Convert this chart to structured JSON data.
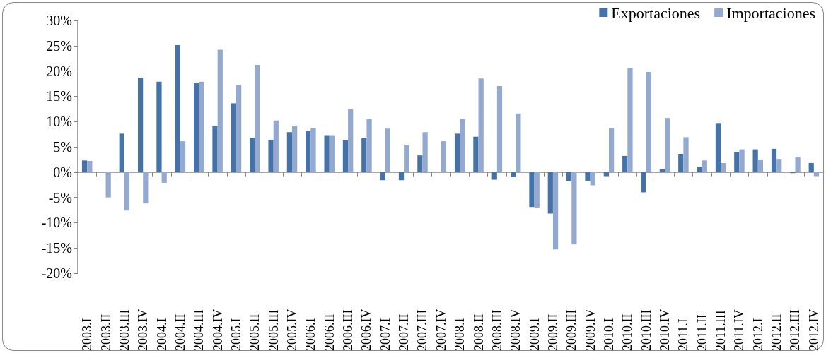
{
  "chart_data": {
    "type": "bar",
    "categories": [
      "2003.I",
      "2003.II",
      "2003.III",
      "2003.IV",
      "2004.I",
      "2004.II",
      "2004.III",
      "2004.IV",
      "2005.I",
      "2005.II",
      "2005.III",
      "2005.IV",
      "2006.I",
      "2006.II",
      "2006.III",
      "2006.IV",
      "2007.I",
      "2007.II",
      "2007.III",
      "2007.IV",
      "2008.I",
      "2008.II",
      "2008.III",
      "2008.IV",
      "2009.I",
      "2009.II",
      "2009.III",
      "2009.IV",
      "2010.I",
      "2010.II",
      "2010.III",
      "2010.IV",
      "2011.I",
      "2011.II",
      "2011.III",
      "2011.IV",
      "2012.I",
      "2012.II",
      "2012.III",
      "2012.IV"
    ],
    "series": [
      {
        "name": "Exportaciones",
        "color": "#4572a7",
        "values": [
          2.3,
          0,
          7.6,
          18.7,
          17.9,
          25.1,
          17.7,
          9.1,
          13.6,
          6.8,
          6.4,
          7.9,
          8.1,
          7.3,
          6.3,
          6.7,
          -1.6,
          -1.6,
          3.3,
          0,
          7.6,
          7.0,
          -1.5,
          -0.9,
          -6.9,
          -8.2,
          -1.8,
          -1.7,
          -0.8,
          3.2,
          -4.0,
          0.6,
          3.6,
          1.1,
          9.7,
          4.0,
          4.5,
          4.6,
          -0.2,
          1.8
        ]
      },
      {
        "name": "Importaciones",
        "color": "#93a9cf",
        "values": [
          2.2,
          -5.0,
          -7.6,
          -6.2,
          -2.1,
          6.1,
          17.9,
          24.2,
          17.3,
          21.2,
          10.2,
          9.2,
          8.7,
          7.3,
          12.4,
          10.5,
          8.6,
          5.4,
          7.9,
          6.1,
          10.5,
          18.5,
          17.0,
          11.6,
          -7.0,
          -15.3,
          -14.3,
          -2.6,
          8.7,
          20.6,
          19.8,
          10.7,
          6.9,
          2.3,
          1.8,
          4.5,
          2.5,
          2.6,
          2.9,
          -0.8
        ]
      }
    ],
    "ylim": [
      -20,
      30
    ],
    "yticks": [
      {
        "value": -20,
        "label": "-20%"
      },
      {
        "value": -15,
        "label": "-15%"
      },
      {
        "value": -10,
        "label": "-10%"
      },
      {
        "value": -5,
        "label": "-5%"
      },
      {
        "value": 0,
        "label": "0%"
      },
      {
        "value": 5,
        "label": "5%"
      },
      {
        "value": 10,
        "label": "10%"
      },
      {
        "value": 15,
        "label": "15%"
      },
      {
        "value": 20,
        "label": "20%"
      },
      {
        "value": 25,
        "label": "25%"
      },
      {
        "value": 30,
        "label": "30%"
      }
    ],
    "legend": "top right"
  }
}
